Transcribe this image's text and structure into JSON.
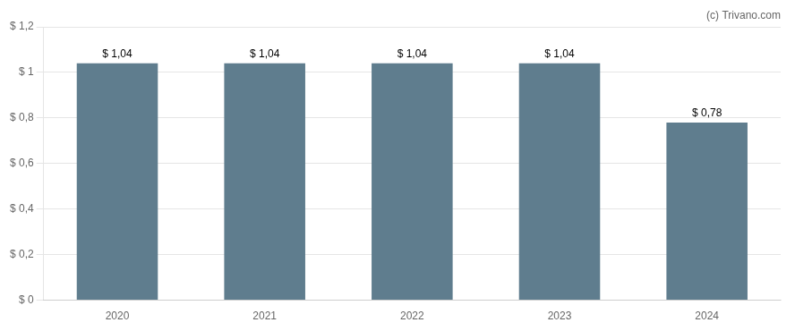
{
  "chart_data": {
    "type": "bar",
    "categories": [
      "2020",
      "2021",
      "2022",
      "2023",
      "2024"
    ],
    "values": [
      1.04,
      1.04,
      1.04,
      1.04,
      0.78
    ],
    "value_labels": [
      "$ 1,04",
      "$ 1,04",
      "$ 1,04",
      "$ 1,04",
      "$ 0,78"
    ],
    "data_labels": true,
    "color": "#5f7d8e",
    "ylim": [
      0,
      1.2
    ],
    "yticks": [
      {
        "value": 0,
        "label": "$ 0"
      },
      {
        "value": 0.2,
        "label": "$ 0,2"
      },
      {
        "value": 0.4,
        "label": "$ 0,4"
      },
      {
        "value": 0.6,
        "label": "$ 0,6"
      },
      {
        "value": 0.8,
        "label": "$ 0,8"
      },
      {
        "value": 1.0,
        "label": "$ 1"
      },
      {
        "value": 1.2,
        "label": "$ 1,2"
      }
    ],
    "grid": true,
    "annotations": [
      {
        "text": "(c) Trivano.com"
      }
    ]
  }
}
